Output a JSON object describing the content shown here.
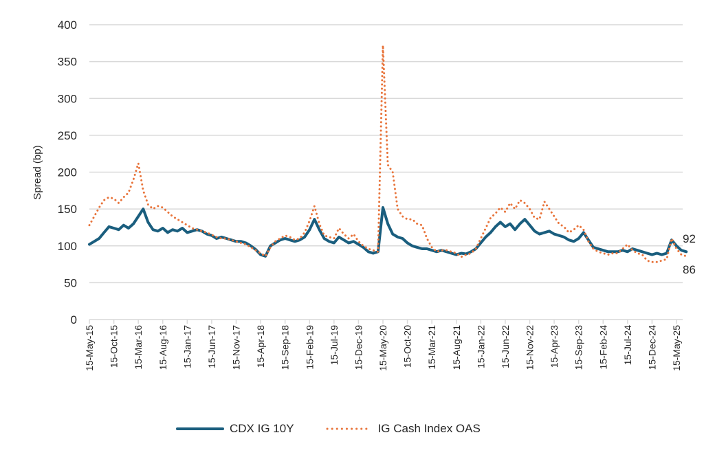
{
  "chart_data": {
    "type": "line",
    "title": "",
    "xlabel": "",
    "ylabel": "Spread (bp)",
    "ylim": [
      0,
      400
    ],
    "yticks": [
      0,
      50,
      100,
      150,
      200,
      250,
      300,
      350,
      400
    ],
    "grid": true,
    "x_tick_labels": [
      "15-May-15",
      "15-Oct-15",
      "15-Mar-16",
      "15-Aug-16",
      "15-Jan-17",
      "15-Jun-17",
      "15-Nov-17",
      "15-Apr-18",
      "15-Sep-18",
      "15-Feb-19",
      "15-Jul-19",
      "15-Dec-19",
      "15-May-20",
      "15-Oct-20",
      "15-Mar-21",
      "15-Aug-21",
      "15-Jan-22",
      "15-Jun-22",
      "15-Nov-22",
      "15-Apr-23",
      "15-Sep-23",
      "15-Feb-24",
      "15-Jul-24",
      "15-Dec-24",
      "15-May-25"
    ],
    "x_start": "2015-05",
    "x_step": "1 month",
    "legend_position": "bottom",
    "end_labels": [
      "92",
      "86"
    ],
    "series": [
      {
        "name": "CDX IG 10Y",
        "color": "#1a5e7e",
        "style": "solid",
        "values": [
          102,
          106,
          110,
          118,
          126,
          124,
          122,
          128,
          124,
          130,
          140,
          150,
          132,
          122,
          120,
          124,
          118,
          122,
          120,
          124,
          118,
          120,
          122,
          120,
          116,
          114,
          110,
          112,
          110,
          108,
          106,
          106,
          104,
          100,
          95,
          88,
          86,
          100,
          104,
          108,
          110,
          108,
          106,
          108,
          112,
          122,
          136,
          122,
          110,
          106,
          104,
          112,
          108,
          104,
          106,
          102,
          98,
          92,
          90,
          92,
          152,
          130,
          116,
          112,
          110,
          104,
          100,
          98,
          96,
          96,
          94,
          92,
          94,
          92,
          90,
          88,
          90,
          89,
          92,
          96,
          104,
          112,
          118,
          126,
          132,
          126,
          130,
          122,
          130,
          136,
          128,
          120,
          116,
          118,
          120,
          116,
          114,
          112,
          108,
          106,
          110,
          118,
          108,
          98,
          96,
          94,
          92,
          92,
          92,
          94,
          92,
          96,
          94,
          92,
          90,
          88,
          90,
          88,
          90,
          108,
          100,
          94,
          92
        ]
      },
      {
        "name": "IG Cash Index OAS",
        "color": "#e8743b",
        "style": "dotted",
        "values": [
          128,
          140,
          152,
          162,
          166,
          164,
          158,
          166,
          172,
          190,
          212,
          175,
          156,
          150,
          154,
          152,
          146,
          140,
          136,
          132,
          128,
          124,
          122,
          120,
          118,
          115,
          112,
          110,
          110,
          108,
          106,
          104,
          102,
          98,
          94,
          90,
          86,
          98,
          106,
          110,
          114,
          112,
          108,
          110,
          118,
          134,
          154,
          130,
          114,
          112,
          110,
          124,
          116,
          110,
          116,
          106,
          100,
          96,
          94,
          92,
          372,
          210,
          200,
          150,
          140,
          136,
          136,
          130,
          128,
          110,
          98,
          92,
          94,
          94,
          92,
          90,
          85,
          88,
          90,
          96,
          110,
          124,
          138,
          144,
          152,
          146,
          158,
          150,
          162,
          158,
          150,
          138,
          136,
          160,
          150,
          140,
          130,
          126,
          118,
          122,
          128,
          122,
          106,
          96,
          92,
          90,
          88,
          90,
          90,
          96,
          102,
          94,
          90,
          88,
          80,
          78,
          78,
          80,
          82,
          110,
          96,
          88,
          86
        ]
      }
    ]
  }
}
